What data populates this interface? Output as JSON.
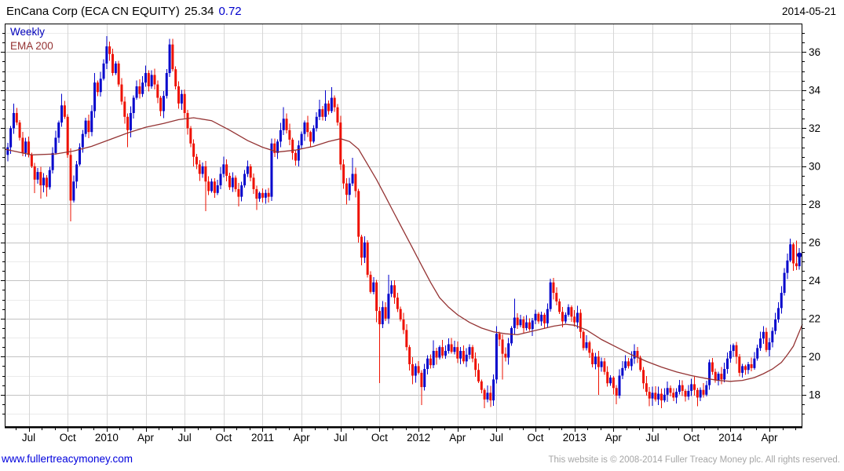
{
  "header": {
    "title": "EnCana Corp (ECA CN EQUITY)",
    "last_price": "25.34",
    "change": "0.72",
    "date": "2014-05-21"
  },
  "legend": {
    "timeframe": "Weekly",
    "overlay": "EMA 200"
  },
  "footer": {
    "link": "www.fullertreacymoney.com",
    "copyright": "This website is © 2008-2014 Fuller Treacy Money plc. All rights reserved."
  },
  "colors": {
    "up": "#0202cc",
    "down": "#ee1100",
    "ema": "#943333",
    "grid_major": "#c3c3c3",
    "grid_minor": "#ebebeb",
    "grid_vertical": "#d6d6d6",
    "axis": "#000000",
    "label": "#000000",
    "title_change": "#0000cc",
    "link": "#0000dd",
    "copyright": "#a5a5a5",
    "dot": "#0000bb"
  },
  "chart_data": {
    "type": "candlestick",
    "title": "EnCana Corp (ECA CN EQUITY)",
    "timeframe": "Weekly",
    "overlay": "EMA 200",
    "last_price": 25.34,
    "change": 0.72,
    "first_open": 30.6,
    "ylim": [
      16.3,
      37.5
    ],
    "y_ticks": [
      18,
      20,
      22,
      24,
      26,
      28,
      30,
      32,
      34,
      36
    ],
    "x_ticks": {
      "weeks": [
        7,
        20,
        33,
        46,
        59,
        72,
        85,
        98,
        111,
        124,
        137,
        150,
        163,
        176,
        189,
        202,
        215,
        228,
        241,
        254
      ],
      "labels": [
        "Jul",
        "Oct",
        "2010",
        "Apr",
        "Jul",
        "Oct",
        "2011",
        "Apr",
        "Jul",
        "Oct",
        "2012",
        "Apr",
        "Jul",
        "Oct",
        "2013",
        "Apr",
        "Jul",
        "Oct",
        "2014",
        "Apr"
      ]
    },
    "closes": [
      31.0,
      32.0,
      32.8,
      32.3,
      31.5,
      30.7,
      31.3,
      30.6,
      30.0,
      29.3,
      29.7,
      29.0,
      29.4,
      28.9,
      29.8,
      30.7,
      31.5,
      32.3,
      33.2,
      32.6,
      30.6,
      28.2,
      29.2,
      30.1,
      31.0,
      31.7,
      32.4,
      31.8,
      32.9,
      34.4,
      33.9,
      34.6,
      35.4,
      36.3,
      35.9,
      34.9,
      35.4,
      34.3,
      33.4,
      32.6,
      31.9,
      32.8,
      33.6,
      34.2,
      33.8,
      34.4,
      34.9,
      34.2,
      34.8,
      34.3,
      33.6,
      32.9,
      33.7,
      34.9,
      36.4,
      35.1,
      34.2,
      33.3,
      33.8,
      32.8,
      32.0,
      31.2,
      30.5,
      30.1,
      29.6,
      30.0,
      29.2,
      28.7,
      29.2,
      28.6,
      29.0,
      29.6,
      30.1,
      29.5,
      28.9,
      29.4,
      28.8,
      28.4,
      29.0,
      29.6,
      30.0,
      29.4,
      28.8,
      28.3,
      28.6,
      28.35,
      28.6,
      28.4,
      31.2,
      30.7,
      31.3,
      31.9,
      32.5,
      31.9,
      31.4,
      30.7,
      30.3,
      31.1,
      31.7,
      32.3,
      31.8,
      31.3,
      32.0,
      32.6,
      33.0,
      32.6,
      33.3,
      32.9,
      33.6,
      33.1,
      32.3,
      30.1,
      29.1,
      28.5,
      29.1,
      29.6,
      28.7,
      26.3,
      25.2,
      26.0,
      24.3,
      23.4,
      23.9,
      22.4,
      21.7,
      22.6,
      22.0,
      23.3,
      23.75,
      23.1,
      22.5,
      21.95,
      21.4,
      20.5,
      19.6,
      19.0,
      19.5,
      19.15,
      18.4,
      19.35,
      19.9,
      19.55,
      20.3,
      19.95,
      20.5,
      20.05,
      20.3,
      20.65,
      20.25,
      20.5,
      19.9,
      20.3,
      19.75,
      20.1,
      20.5,
      19.9,
      19.3,
      18.7,
      18.25,
      17.75,
      18.1,
      17.7,
      18.8,
      21.2,
      20.9,
      20.15,
      19.95,
      20.7,
      21.5,
      22.05,
      21.65,
      21.95,
      21.5,
      21.8,
      21.45,
      21.9,
      22.25,
      21.85,
      22.2,
      21.75,
      22.5,
      23.9,
      23.35,
      22.9,
      22.35,
      21.85,
      22.2,
      22.6,
      22.1,
      21.8,
      22.3,
      21.3,
      20.45,
      20.75,
      20.2,
      19.6,
      20.0,
      19.45,
      19.75,
      19.2,
      18.6,
      18.9,
      18.35,
      17.95,
      19.0,
      19.4,
      19.75,
      19.5,
      19.9,
      20.3,
      19.95,
      19.3,
      18.6,
      18.15,
      17.8,
      18.1,
      17.75,
      18.05,
      17.7,
      18.0,
      18.35,
      18.1,
      17.85,
      18.15,
      18.5,
      18.2,
      17.9,
      18.2,
      18.55,
      18.25,
      17.85,
      18.25,
      18.0,
      18.5,
      19.7,
      19.2,
      18.75,
      19.1,
      18.8,
      19.35,
      19.9,
      20.3,
      20.6,
      20.0,
      19.15,
      19.5,
      19.3,
      19.6,
      19.4,
      19.9,
      20.45,
      20.95,
      21.3,
      20.35,
      20.75,
      21.35,
      21.95,
      22.55,
      23.35,
      24.4,
      25.05,
      25.9,
      24.9,
      24.75,
      25.34
    ],
    "wick_lows": {
      "9": 28.6,
      "11": 28.3,
      "13": 28.4,
      "21": 27.1,
      "40": 31.0,
      "62": 30.0,
      "66": 27.65,
      "77": 27.9,
      "83": 27.7,
      "113": 28.0,
      "118": 24.8,
      "123": 21.8,
      "124": 18.6,
      "135": 18.55,
      "138": 17.45,
      "159": 17.3,
      "161": 17.35,
      "165": 18.8,
      "197": 18.0,
      "203": 17.5,
      "214": 17.4,
      "218": 17.3,
      "230": 17.4,
      "262": 24.5
    },
    "wick_highs": {
      "2": 33.3,
      "18": 33.8,
      "29": 34.9,
      "33": 36.85,
      "46": 35.3,
      "54": 36.7,
      "72": 30.5,
      "92": 33.1,
      "104": 33.5,
      "106": 34.0,
      "108": 34.15,
      "115": 30.45,
      "127": 24.3,
      "128": 24.0,
      "142": 20.85,
      "163": 21.6,
      "169": 23.05,
      "181": 24.1,
      "234": 19.85,
      "242": 20.7,
      "252": 21.6,
      "256": 22.3,
      "257": 22.85,
      "261": 26.2,
      "263": 26.1
    },
    "ema_points": [
      [
        -1,
        30.9
      ],
      [
        8,
        30.6
      ],
      [
        16,
        30.65
      ],
      [
        22,
        30.8
      ],
      [
        28,
        31.05
      ],
      [
        34,
        31.4
      ],
      [
        40,
        31.75
      ],
      [
        46,
        32.05
      ],
      [
        52,
        32.25
      ],
      [
        57,
        32.45
      ],
      [
        62,
        32.55
      ],
      [
        68,
        32.4
      ],
      [
        74,
        31.9
      ],
      [
        80,
        31.35
      ],
      [
        85,
        31.0
      ],
      [
        90,
        30.75
      ],
      [
        96,
        30.85
      ],
      [
        102,
        31.05
      ],
      [
        107,
        31.3
      ],
      [
        111,
        31.45
      ],
      [
        114,
        31.3
      ],
      [
        117,
        30.9
      ],
      [
        120,
        30.1
      ],
      [
        123,
        29.3
      ],
      [
        126,
        28.4
      ],
      [
        129,
        27.5
      ],
      [
        132,
        26.6
      ],
      [
        135,
        25.7
      ],
      [
        138,
        24.8
      ],
      [
        141,
        23.9
      ],
      [
        144,
        23.1
      ],
      [
        147,
        22.6
      ],
      [
        150,
        22.2
      ],
      [
        154,
        21.8
      ],
      [
        158,
        21.5
      ],
      [
        162,
        21.3
      ],
      [
        166,
        21.2
      ],
      [
        170,
        21.15
      ],
      [
        174,
        21.3
      ],
      [
        178,
        21.45
      ],
      [
        182,
        21.6
      ],
      [
        186,
        21.7
      ],
      [
        189,
        21.65
      ],
      [
        193,
        21.4
      ],
      [
        198,
        20.9
      ],
      [
        203,
        20.5
      ],
      [
        208,
        20.1
      ],
      [
        213,
        19.75
      ],
      [
        218,
        19.45
      ],
      [
        223,
        19.2
      ],
      [
        228,
        19.0
      ],
      [
        233,
        18.85
      ],
      [
        237,
        18.75
      ],
      [
        241,
        18.7
      ],
      [
        245,
        18.75
      ],
      [
        249,
        18.9
      ],
      [
        252,
        19.1
      ],
      [
        255,
        19.35
      ],
      [
        258,
        19.7
      ],
      [
        260,
        20.1
      ],
      [
        262,
        20.55
      ],
      [
        265,
        21.7
      ]
    ]
  }
}
